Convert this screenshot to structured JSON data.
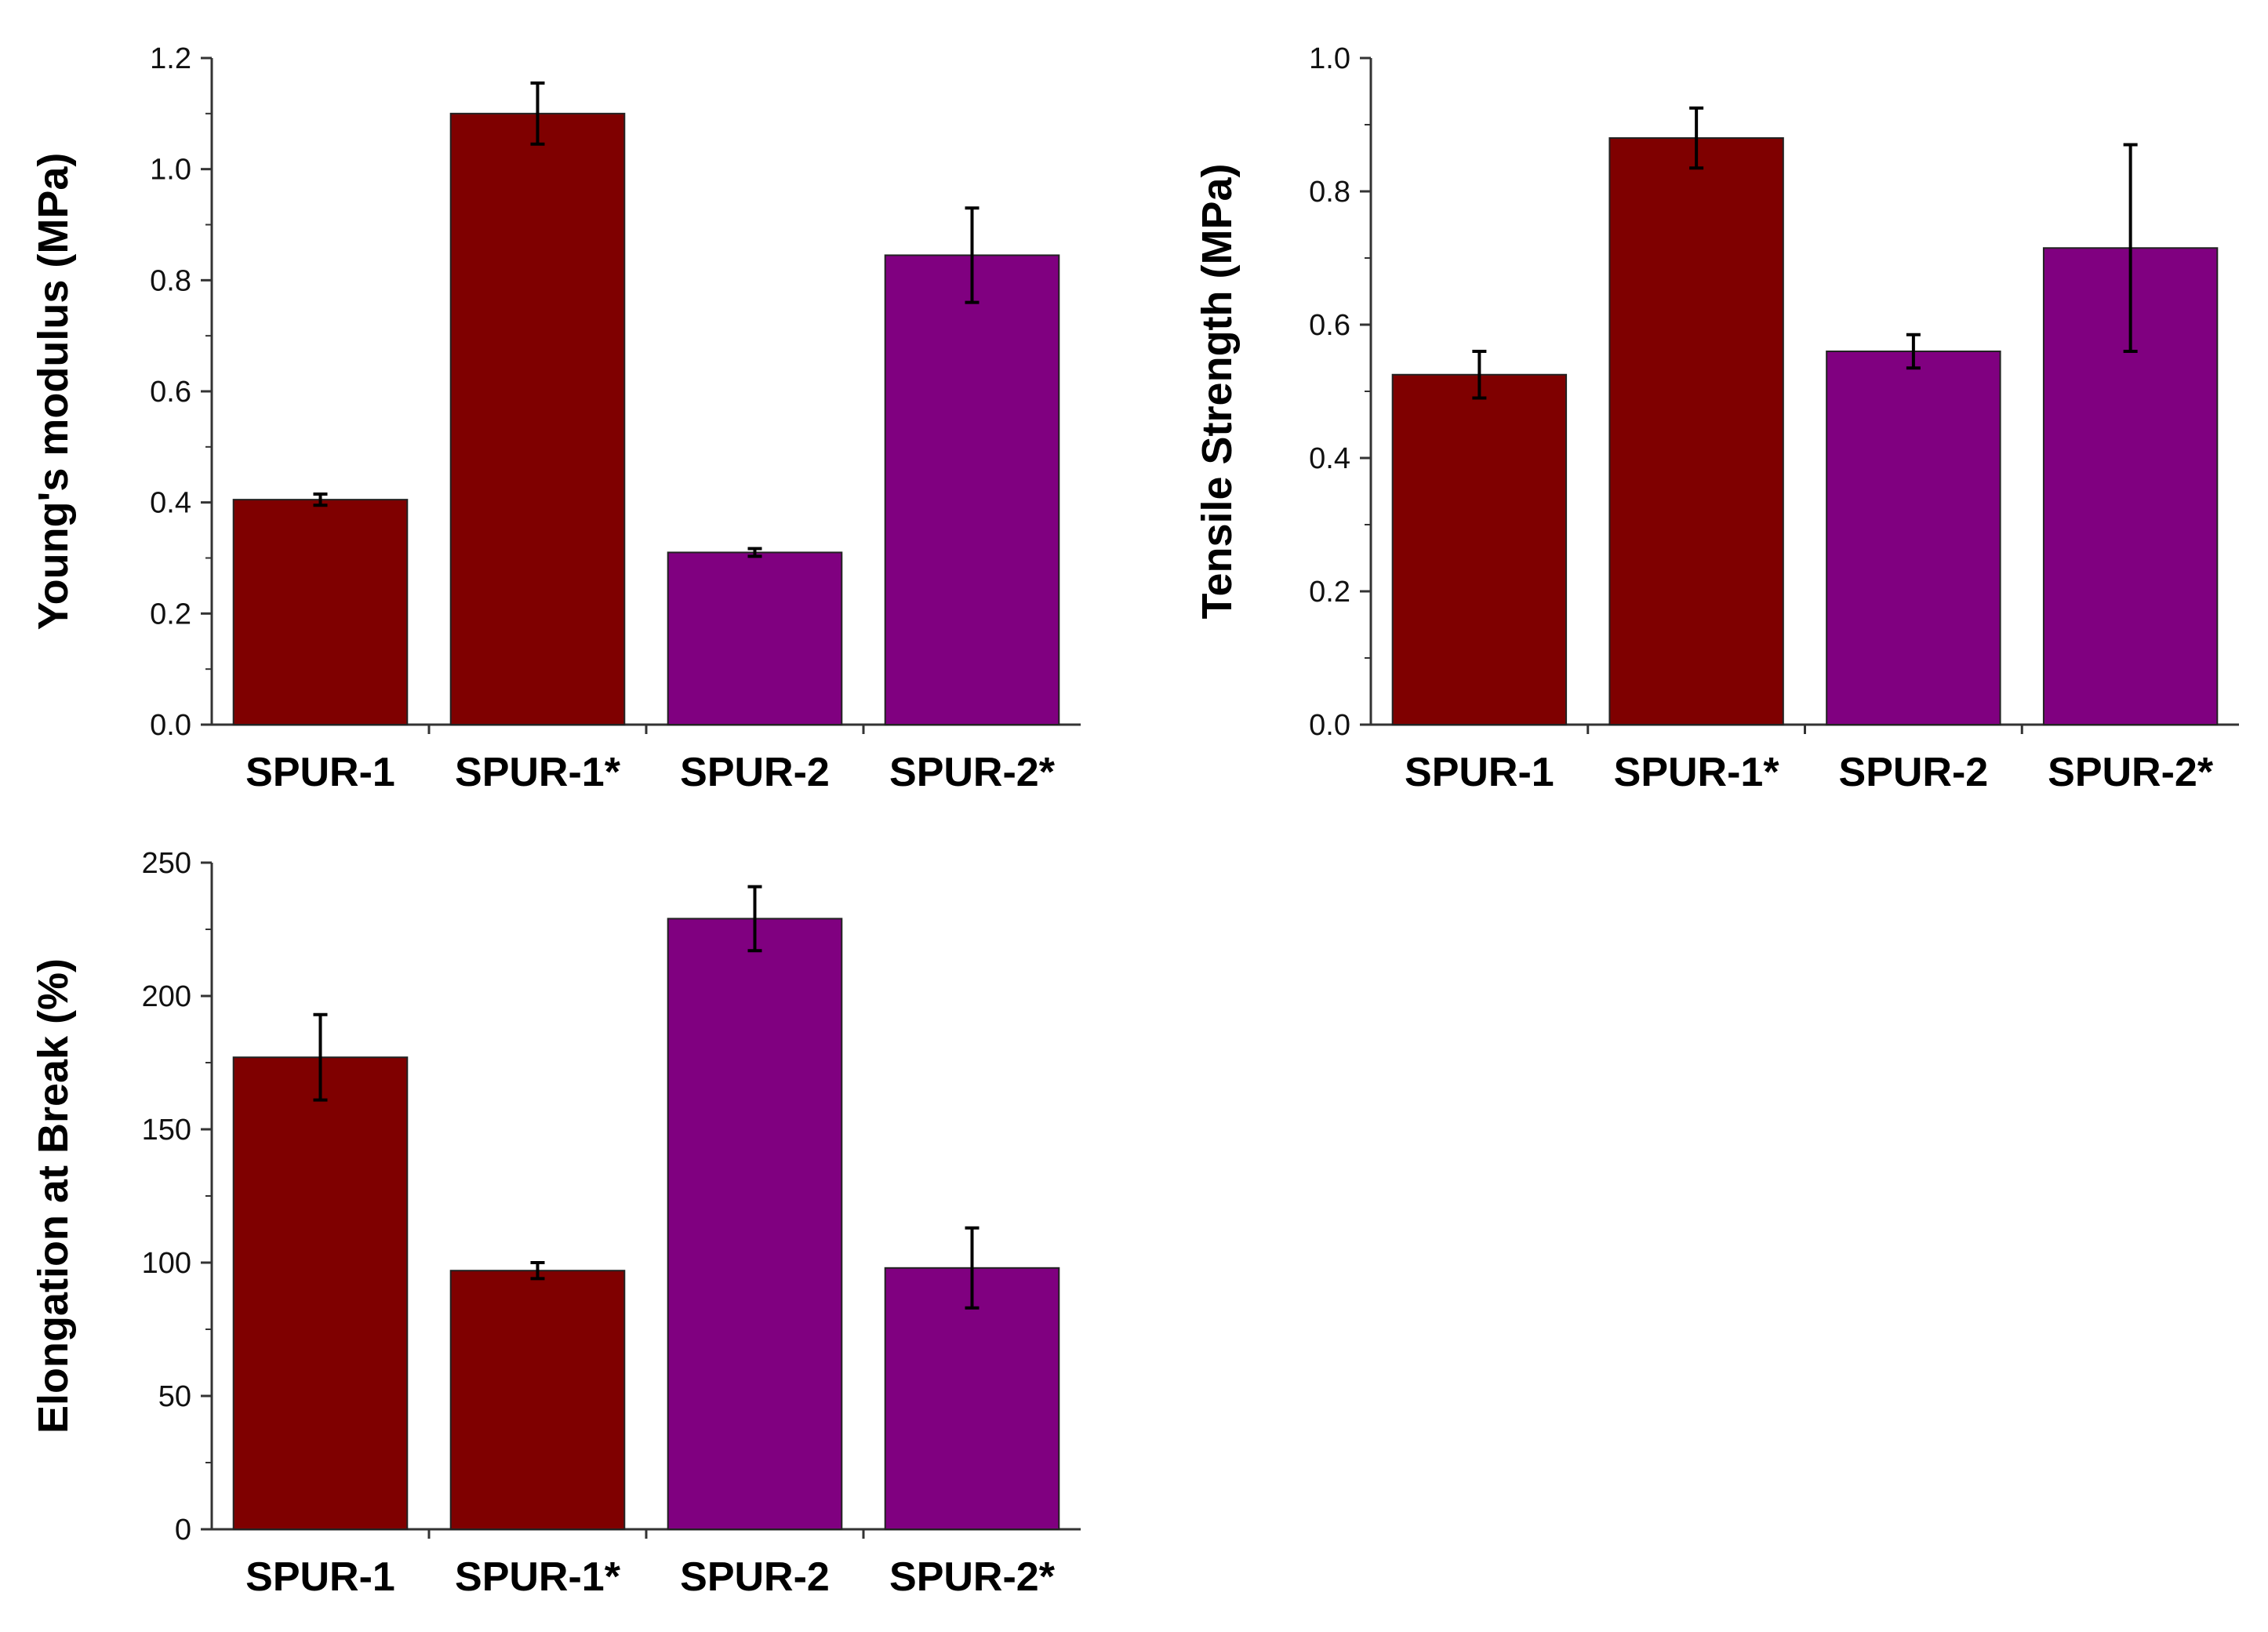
{
  "colors": {
    "spur1": "#7f0000",
    "spur2": "#800080",
    "axis": "#333333",
    "error_bar": "#000000"
  },
  "chart_data": [
    {
      "type": "bar",
      "title": "",
      "categories": [
        "SPUR-1",
        "SPUR-1*",
        "SPUR-2",
        "SPUR-2*"
      ],
      "values": [
        0.405,
        1.1,
        0.31,
        0.845
      ],
      "errors": [
        0.01,
        0.055,
        0.007,
        0.085
      ],
      "bar_colors": [
        "#7f0000",
        "#7f0000",
        "#800080",
        "#800080"
      ],
      "xlabel": "",
      "ylabel": "Young's modulus (MPa)",
      "ylim": [
        0,
        1.2
      ],
      "yticks": [
        0.0,
        0.2,
        0.4,
        0.6,
        0.8,
        1.0,
        1.2
      ],
      "ytick_labels": [
        "0.0",
        "0.2",
        "0.4",
        "0.6",
        "0.8",
        "1.0",
        "1.2"
      ],
      "grid": false
    },
    {
      "type": "bar",
      "title": "",
      "categories": [
        "SPUR-1",
        "SPUR-1*",
        "SPUR-2",
        "SPUR-2*"
      ],
      "values": [
        0.525,
        0.88,
        0.56,
        0.715
      ],
      "errors": [
        0.035,
        0.045,
        0.025,
        0.155
      ],
      "bar_colors": [
        "#7f0000",
        "#7f0000",
        "#800080",
        "#800080"
      ],
      "xlabel": "",
      "ylabel": "Tensile Strength (MPa)",
      "ylim": [
        0,
        1.0
      ],
      "yticks": [
        0.0,
        0.2,
        0.4,
        0.6,
        0.8,
        1.0
      ],
      "ytick_labels": [
        "0.0",
        "0.2",
        "0.4",
        "0.6",
        "0.8",
        "1.0"
      ],
      "grid": false
    },
    {
      "type": "bar",
      "title": "",
      "categories": [
        "SPUR-1",
        "SPUR-1*",
        "SPUR-2",
        "SPUR-2*"
      ],
      "values": [
        177,
        97,
        229,
        98
      ],
      "errors": [
        16,
        3,
        12,
        15
      ],
      "bar_colors": [
        "#7f0000",
        "#7f0000",
        "#800080",
        "#800080"
      ],
      "xlabel": "",
      "ylabel": "Elongation at Break (%)",
      "ylim": [
        0,
        250
      ],
      "yticks": [
        0,
        50,
        100,
        150,
        200,
        250
      ],
      "ytick_labels": [
        "0",
        "50",
        "100",
        "150",
        "200",
        "250"
      ],
      "grid": false
    }
  ]
}
